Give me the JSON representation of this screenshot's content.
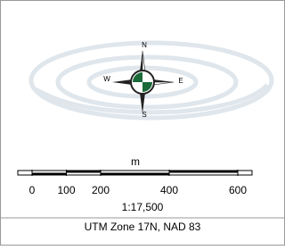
{
  "compass": {
    "north": "N",
    "south": "S",
    "west": "W",
    "east": "E"
  },
  "scale_bar": {
    "unit": "m",
    "ticks": [
      0,
      100,
      200,
      400,
      600
    ]
  },
  "scale_ratio": "1:17,500",
  "projection": "UTM Zone 17N, NAD 83"
}
